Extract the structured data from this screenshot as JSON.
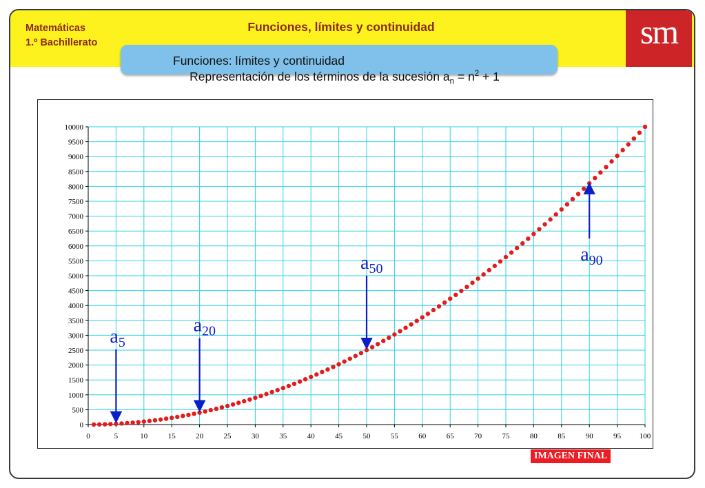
{
  "header": {
    "subject_line1": "Matemáticas",
    "subject_line2": "1.º Bachillerato",
    "course_title": "Funciones, límites y continuidad",
    "unit_title": "Funciones: límites y continuidad",
    "logo_text": "sm"
  },
  "chart_heading": {
    "prefix": "Representación de los términos de la sucesión a",
    "sub": "n",
    "middle": " = n",
    "sup": "2",
    "suffix": " + 1"
  },
  "colors": {
    "header_band": "#fdf21d",
    "header_text": "#8b2a17",
    "tab": "#7fc1ea",
    "logo": "#cc2427",
    "grid": "#2ed2e6",
    "points": "#e41b1b",
    "arrows": "#0b1fc8",
    "badge": "#ed1c24"
  },
  "chart_data": {
    "type": "scatter",
    "formula": "a_n = n^2 + 1",
    "x": [
      1,
      2,
      3,
      4,
      5,
      6,
      7,
      8,
      9,
      10,
      11,
      12,
      13,
      14,
      15,
      16,
      17,
      18,
      19,
      20,
      21,
      22,
      23,
      24,
      25,
      26,
      27,
      28,
      29,
      30,
      31,
      32,
      33,
      34,
      35,
      36,
      37,
      38,
      39,
      40,
      41,
      42,
      43,
      44,
      45,
      46,
      47,
      48,
      49,
      50,
      51,
      52,
      53,
      54,
      55,
      56,
      57,
      58,
      59,
      60,
      61,
      62,
      63,
      64,
      65,
      66,
      67,
      68,
      69,
      70,
      71,
      72,
      73,
      74,
      75,
      76,
      77,
      78,
      79,
      80,
      81,
      82,
      83,
      84,
      85,
      86,
      87,
      88,
      89,
      90,
      91,
      92,
      93,
      94,
      95,
      96,
      97,
      98,
      99,
      100
    ],
    "y": [
      2,
      5,
      10,
      17,
      26,
      37,
      50,
      65,
      82,
      101,
      122,
      145,
      170,
      197,
      226,
      257,
      290,
      325,
      362,
      401,
      442,
      485,
      530,
      577,
      626,
      677,
      730,
      785,
      842,
      901,
      962,
      1025,
      1090,
      1157,
      1226,
      1297,
      1370,
      1445,
      1522,
      1601,
      1682,
      1765,
      1850,
      1937,
      2026,
      2117,
      2210,
      2305,
      2402,
      2501,
      2602,
      2705,
      2810,
      2917,
      3026,
      3137,
      3250,
      3365,
      3482,
      3601,
      3722,
      3845,
      3970,
      4097,
      4226,
      4357,
      4490,
      4625,
      4762,
      4901,
      5042,
      5185,
      5330,
      5477,
      5626,
      5777,
      5930,
      6085,
      6242,
      6401,
      6562,
      6725,
      6890,
      7057,
      7226,
      7397,
      7570,
      7745,
      7922,
      8101,
      8282,
      8465,
      8650,
      8837,
      9026,
      9217,
      9410,
      9605,
      9802,
      10001
    ],
    "xlim": [
      0,
      100
    ],
    "ylim": [
      0,
      10000
    ],
    "x_ticks": [
      0,
      5,
      10,
      15,
      20,
      25,
      30,
      35,
      40,
      45,
      50,
      55,
      60,
      65,
      70,
      75,
      80,
      85,
      90,
      95,
      100
    ],
    "y_ticks": [
      0,
      500,
      1000,
      1500,
      2000,
      2500,
      3000,
      3500,
      4000,
      4500,
      5000,
      5500,
      6000,
      6500,
      7000,
      7500,
      8000,
      8500,
      9000,
      9500,
      10000
    ],
    "grid": true,
    "annotations": [
      {
        "base": "a",
        "sub": "5",
        "n": 5,
        "direction": "down"
      },
      {
        "base": "a",
        "sub": "20",
        "n": 20,
        "direction": "down"
      },
      {
        "base": "a",
        "sub": "50",
        "n": 50,
        "direction": "down"
      },
      {
        "base": "a",
        "sub": "90",
        "n": 90,
        "direction": "up"
      }
    ]
  },
  "badge": {
    "label": "IMAGEN FINAL"
  }
}
